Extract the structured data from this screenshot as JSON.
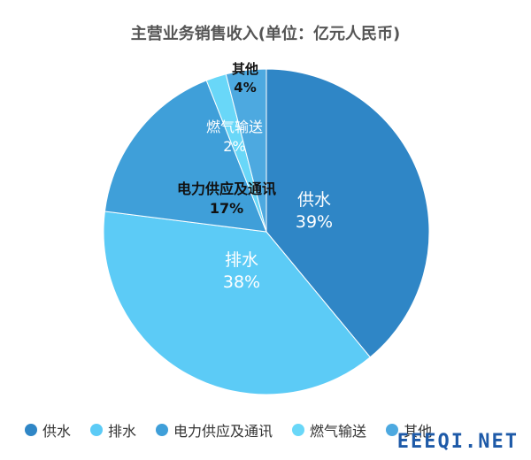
{
  "chart_data": {
    "type": "pie",
    "title": "主营业务销售收入(单位：亿元人民币)",
    "slices": [
      {
        "name": "供水",
        "percent": "39%",
        "value": 39,
        "color": "#2f86c6",
        "label_color": "#ffffff"
      },
      {
        "name": "排水",
        "percent": "38%",
        "value": 38,
        "color": "#5ccbf6",
        "label_color": "#ffffff"
      },
      {
        "name": "电力供应及通讯",
        "percent": "17%",
        "value": 17,
        "color": "#3f9fd9",
        "label_color": "#111111"
      },
      {
        "name": "燃气输送",
        "percent": "2%",
        "value": 2,
        "color": "#69d7f8",
        "label_color": "#ffffff"
      },
      {
        "name": "其他",
        "percent": "4%",
        "value": 4,
        "color": "#4da9e0",
        "label_color": "#111111"
      }
    ],
    "legend_position": "bottom"
  },
  "watermark": "EEEQI.NET"
}
